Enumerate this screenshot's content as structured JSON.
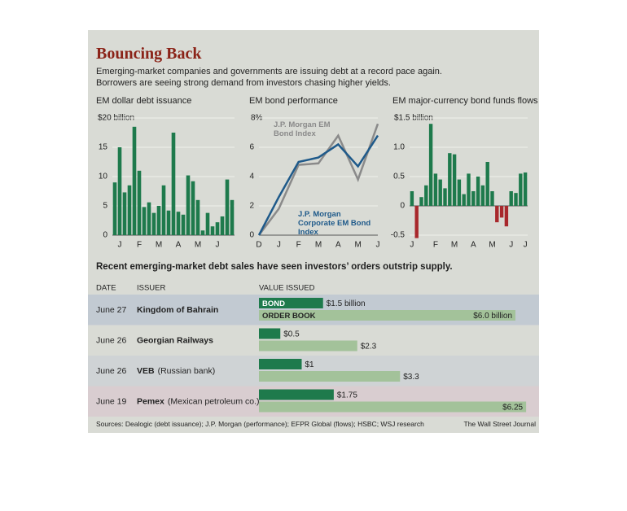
{
  "header": {
    "title": "Bouncing Back",
    "subtitle": "Emerging-market companies and governments are issuing debt at a record pace again. Borrowers are seeing strong demand from investors chasing higher yields."
  },
  "chart_data": [
    {
      "type": "bar",
      "title": "EM dollar debt issuance",
      "categories": [
        null,
        "J",
        null,
        null,
        null,
        "F",
        null,
        null,
        null,
        "M",
        null,
        null,
        null,
        "A",
        null,
        null,
        null,
        "M",
        null,
        null,
        null,
        "J",
        null,
        null,
        null
      ],
      "values": [
        9,
        15,
        7.3,
        8.5,
        18.5,
        11,
        4.8,
        5.6,
        3.8,
        5,
        8.5,
        4.2,
        17.5,
        4,
        3.5,
        10.2,
        9.2,
        6,
        0.8,
        3.8,
        1.5,
        2.2,
        3.2,
        9.5,
        6
      ],
      "color": "#1e7a4c",
      "ylim": [
        0,
        20
      ],
      "yticks": [
        0,
        5,
        10,
        15,
        {
          "value": 20,
          "label": "$20 billion"
        }
      ],
      "grid": true
    },
    {
      "type": "line",
      "title": "EM bond performance",
      "categories": [
        "D",
        "J",
        "F",
        "M",
        "A",
        "M",
        "J"
      ],
      "series": [
        {
          "name": "J.P. Morgan EM Bond Index",
          "color": "#8a8a8a",
          "values": [
            0,
            1.8,
            4.8,
            4.9,
            6.8,
            3.8,
            7.6
          ]
        },
        {
          "name": "J.P. Morgan Corporate EM Bond Index",
          "color": "#1f5a8a",
          "values": [
            0,
            2.6,
            5,
            5.3,
            6.2,
            4.7,
            6.8
          ]
        }
      ],
      "ylim": [
        0,
        8
      ],
      "yticks": [
        0,
        2,
        4,
        6,
        {
          "value": 8,
          "label": "8%"
        }
      ],
      "grid": true
    },
    {
      "type": "bar",
      "title": "EM major-currency bond funds flows",
      "categories": [
        "J",
        null,
        null,
        null,
        null,
        "F",
        null,
        null,
        null,
        "M",
        null,
        null,
        null,
        "A",
        null,
        null,
        null,
        "M",
        null,
        null,
        null,
        "J",
        null,
        null,
        "J"
      ],
      "values": [
        0.25,
        -0.55,
        0.15,
        0.35,
        1.4,
        0.55,
        0.45,
        0.3,
        0.9,
        0.88,
        0.45,
        0.2,
        0.55,
        0.25,
        0.5,
        0.35,
        0.75,
        0.25,
        -0.28,
        -0.2,
        -0.35,
        0.25,
        0.22,
        0.55,
        0.57
      ],
      "color": "#1e7a4c",
      "negative_color": "#a8282c",
      "ylim": [
        -0.5,
        1.5
      ],
      "yticks": [
        -0.5,
        0,
        0.5,
        {
          "value": 1,
          "label": "1.0"
        },
        {
          "value": 1.5,
          "label": "$1.5 billion"
        }
      ],
      "grid": true
    }
  ],
  "table": {
    "title": "Recent emerging-market debt sales have seen investors’ orders outstrip supply.",
    "columns": [
      "DATE",
      "ISSUER",
      "VALUE ISSUED"
    ],
    "bond_label": "BOND",
    "order_book_label": "ORDER BOOK",
    "bond_color": "#1e7a4c",
    "order_book_color": "#a3c29a",
    "rows": [
      {
        "date": "June 27",
        "issuer": "Kingdom of Bahrain",
        "bond": 1.5,
        "bond_label": "$1.5 billion",
        "order_book": 6.0,
        "order_book_label": "$6.0 billion"
      },
      {
        "date": "June 26",
        "issuer": "Georgian Railways",
        "bond": 0.5,
        "bond_label": "$0.5",
        "order_book": 2.3,
        "order_book_label": "$2.3"
      },
      {
        "date": "June 26",
        "issuer": "VEB",
        "note": "(Russian bank)",
        "bond": 1,
        "bond_label": "$1",
        "order_book": 3.3,
        "order_book_label": "$3.3"
      },
      {
        "date": "June 19",
        "issuer": "Pemex",
        "note": "(Mexican petroleum co.)",
        "bond": 1.75,
        "bond_label": "$1.75",
        "order_book": 6.25,
        "order_book_label": "$6.25"
      }
    ]
  },
  "footer": {
    "sources": "Sources: Dealogic (debt issuance); J.P. Morgan (performance); EFPR Global (flows); HSBC; WSJ research",
    "credit": "The Wall Street Journal"
  }
}
